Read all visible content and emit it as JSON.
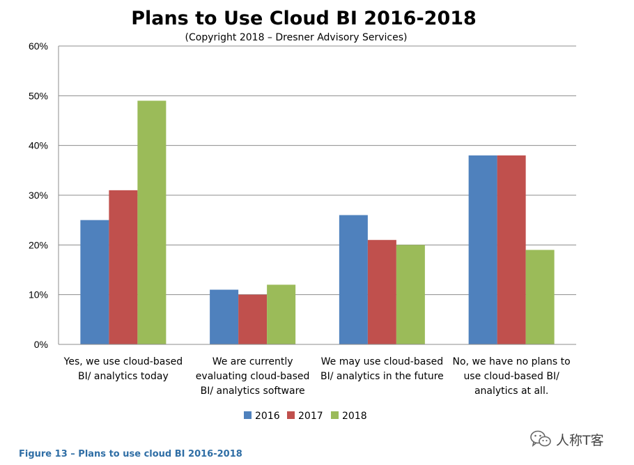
{
  "chart_data": {
    "type": "bar",
    "title": "Plans to Use Cloud BI 2016-2018",
    "subtitle": "(Copyright 2018 – Dresner Advisory Services)",
    "categories": [
      [
        "Yes, we use cloud-based",
        "BI/ analytics  today"
      ],
      [
        "We are currently",
        "evaluating cloud-based",
        "BI/ analytics software"
      ],
      [
        "We may use cloud-based",
        "BI/ analytics in the future"
      ],
      [
        "No, we have no plans to",
        "use cloud-based BI/",
        "analytics at all."
      ]
    ],
    "series": [
      {
        "name": "2016",
        "color": "#4f81bd",
        "values": [
          25,
          11,
          26,
          38
        ]
      },
      {
        "name": "2017",
        "color": "#c0504d",
        "values": [
          31,
          10,
          21,
          38
        ]
      },
      {
        "name": "2018",
        "color": "#9bbb59",
        "values": [
          49,
          12,
          20,
          19
        ]
      }
    ],
    "ylim": [
      0,
      60
    ],
    "yticks": [
      0,
      10,
      20,
      30,
      40,
      50,
      60
    ],
    "ytick_labels": [
      "0%",
      "10%",
      "20%",
      "30%",
      "40%",
      "50%",
      "60%"
    ],
    "grid": true,
    "legend_position": "bottom"
  },
  "caption": "Figure 13 – Plans to use cloud BI 2016-2018",
  "watermark": {
    "text": "人称T客",
    "icon": "wechat-icon"
  }
}
